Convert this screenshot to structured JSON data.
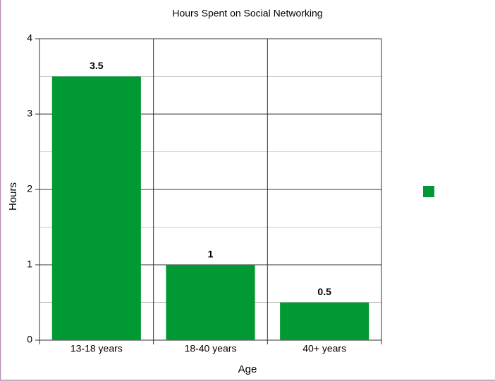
{
  "chart_data": {
    "type": "bar",
    "title": "Hours Spent on Social Networking",
    "x_label": "Age",
    "y_label": "Hours",
    "categories": [
      "13-18 years",
      "18-40 years",
      "40+ years"
    ],
    "values": [
      3.5,
      1,
      0.5
    ],
    "color": "#009933",
    "ylim": [
      0,
      4
    ],
    "yticks": [
      0,
      1,
      2,
      3,
      4
    ],
    "grid": true
  }
}
